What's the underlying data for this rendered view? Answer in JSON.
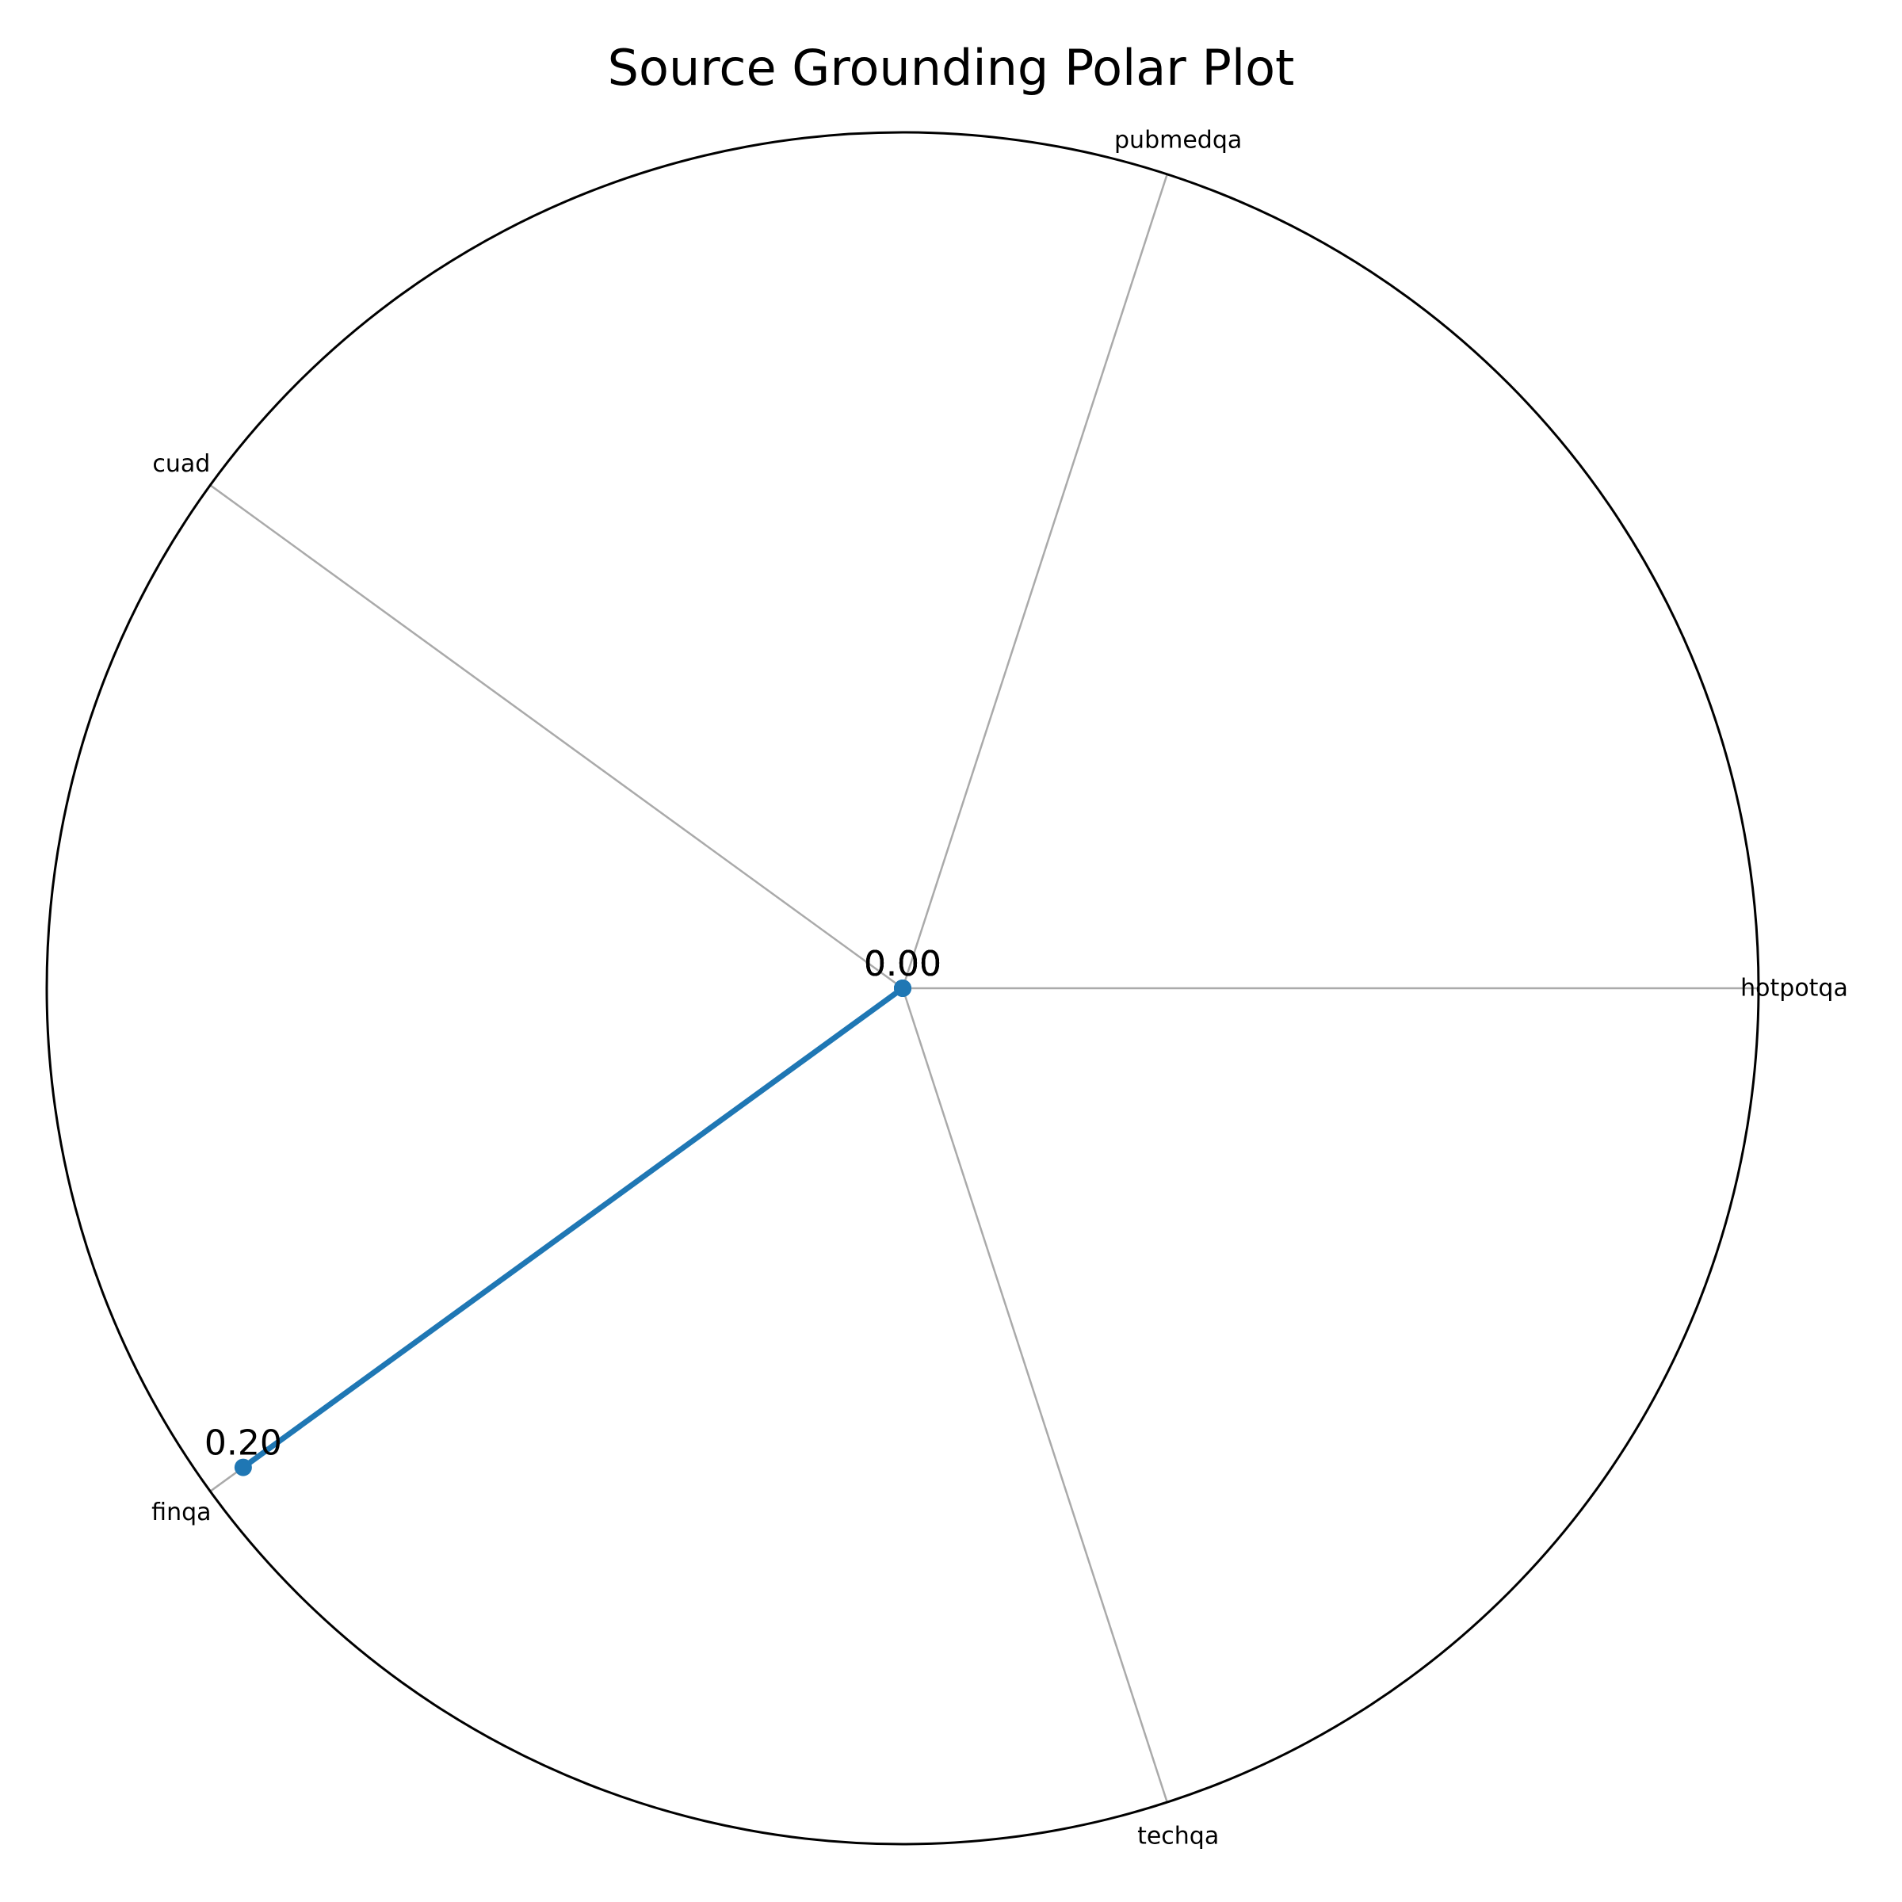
{
  "chart_data": {
    "type": "radar",
    "title": "Source Grounding Polar Plot",
    "categories": [
      "hotpotqa",
      "pubmedqa",
      "cuad",
      "finqa",
      "techqa"
    ],
    "series": [
      {
        "values": [
          0.0,
          0.0,
          0.0,
          0.2,
          0.0
        ],
        "color": "#1f77b4"
      }
    ],
    "rlim": [
      0,
      0.21
    ],
    "data_labels": [
      "0.00",
      "0.00",
      "0.00",
      "0.20",
      "0.00"
    ],
    "grid": true,
    "radial_tick_labels": false,
    "spoke_color": "#aaaaaa",
    "frame_color": "#000000"
  }
}
